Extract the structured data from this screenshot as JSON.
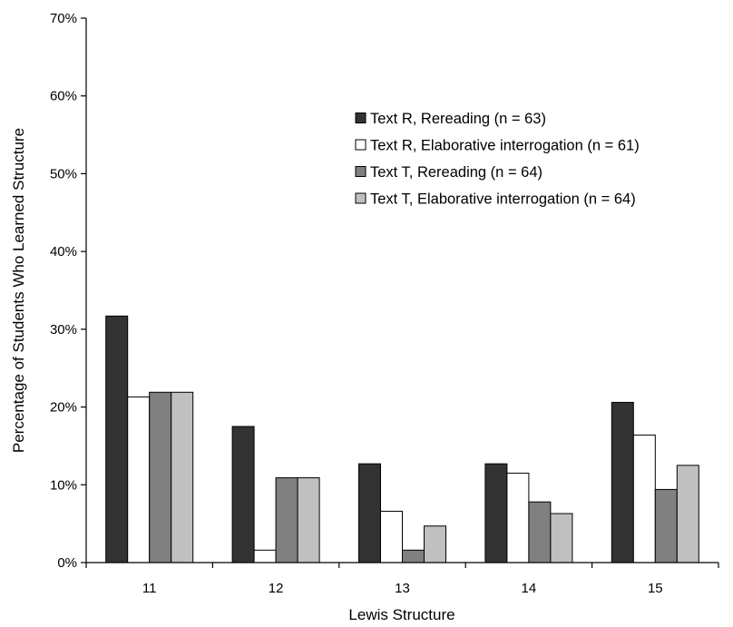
{
  "chart_data": {
    "type": "bar",
    "title": "",
    "xlabel": "Lewis Structure",
    "ylabel": "Percentage of Students Who Learned Structure",
    "ylim": [
      0,
      70
    ],
    "yticks": [
      0,
      10,
      20,
      30,
      40,
      50,
      60,
      70
    ],
    "ytick_labels": [
      "0%",
      "10%",
      "20%",
      "30%",
      "40%",
      "50%",
      "60%",
      "70%"
    ],
    "categories": [
      "11",
      "12",
      "13",
      "14",
      "15"
    ],
    "grid": false,
    "legend_position": "top-right",
    "series": [
      {
        "name": "Text R, Rereading (n = 63)",
        "color": "#333333",
        "values": [
          31.7,
          17.5,
          12.7,
          12.7,
          20.6
        ]
      },
      {
        "name": "Text R, Elaborative interrogation (n = 61)",
        "color": "#ffffff",
        "values": [
          21.3,
          1.6,
          6.6,
          11.5,
          16.4
        ]
      },
      {
        "name": "Text T, Rereading (n = 64)",
        "color": "#808080",
        "values": [
          21.9,
          10.9,
          1.6,
          7.8,
          9.4
        ]
      },
      {
        "name": "Text T, Elaborative interrogation (n = 64)",
        "color": "#c0c0c0",
        "values": [
          21.9,
          10.9,
          4.7,
          6.3,
          12.5
        ]
      }
    ]
  }
}
